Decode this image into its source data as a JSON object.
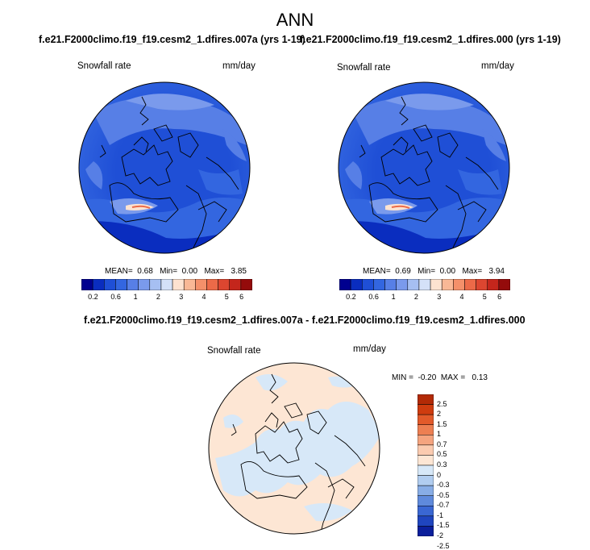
{
  "main_title": "ANN",
  "panels": [
    {
      "case_title": "f.e21.F2000climo.f19_f19.cesm2_1.dfires.007a (yrs 1-19)",
      "variable": "Snowfall rate",
      "units": "mm/day",
      "stats": {
        "mean_label": "MEAN=",
        "mean": "0.68",
        "min_label": "Min=",
        "min": "0.00",
        "max_label": "Max=",
        "max": "3.85"
      }
    },
    {
      "case_title": "f.e21.F2000climo.f19_f19.cesm2_1.dfires.000 (yrs 1-19)",
      "variable": "Snowfall rate",
      "units": "mm/day",
      "stats": {
        "mean_label": "MEAN=",
        "mean": "0.69",
        "min_label": "Min=",
        "min": "0.00",
        "max_label": "Max=",
        "max": "3.94"
      }
    }
  ],
  "abs_colorbar": {
    "colors": [
      "#00008f",
      "#0a2dbf",
      "#1f4fd6",
      "#3366e0",
      "#577fe6",
      "#7a9aec",
      "#a6bff2",
      "#d4e1f8",
      "#fde2d0",
      "#f9b896",
      "#f4906a",
      "#ec6a48",
      "#dc4630",
      "#c4261c",
      "#940b0b"
    ],
    "tick_labels": [
      "0.2",
      "0.6",
      "1",
      "2",
      "3",
      "4",
      "5",
      "6"
    ]
  },
  "diff_panel": {
    "title": "f.e21.F2000climo.f19_f19.cesm2_1.dfires.007a - f.e21.F2000climo.f19_f19.cesm2_1.dfires.000",
    "variable": "Snowfall rate",
    "units": "mm/day",
    "stats": {
      "min_label": "MIN =",
      "min": "-0.20",
      "max_label": "MAX =",
      "max": "0.13"
    }
  },
  "diff_colorbar": {
    "colors": [
      "#b32a06",
      "#cf3c0f",
      "#e25a2a",
      "#ed7f52",
      "#f5a47f",
      "#fbcbb0",
      "#fde6d4",
      "#d7e8f8",
      "#b1cdf0",
      "#88ade6",
      "#5f8adc",
      "#3a67d3",
      "#1f45bf",
      "#0b1f9c"
    ],
    "tick_labels": [
      "2.5",
      "2",
      "1.5",
      "1",
      "0.7",
      "0.5",
      "0.3",
      "0",
      "-0.3",
      "-0.5",
      "-0.7",
      "-1",
      "-1.5",
      "-2",
      "-2.5"
    ]
  }
}
